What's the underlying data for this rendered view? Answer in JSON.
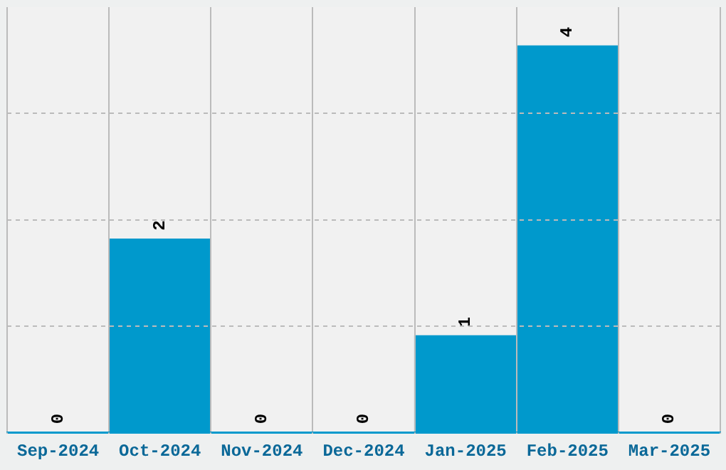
{
  "chart_data": {
    "type": "bar",
    "categories": [
      "Sep-2024",
      "Oct-2024",
      "Nov-2024",
      "Dec-2024",
      "Jan-2025",
      "Feb-2025",
      "Mar-2025"
    ],
    "values": [
      0,
      2,
      0,
      0,
      1,
      4,
      0
    ],
    "color": "#0099cc",
    "data_labels": true,
    "ylim": [
      0,
      4.4
    ],
    "yticks": [
      {
        "value": 1.1,
        "label": null
      },
      {
        "value": 2.2,
        "label": null
      },
      {
        "value": 3.3,
        "label": null
      }
    ],
    "grid": true,
    "tick_labels": "x",
    "legend": false
  }
}
